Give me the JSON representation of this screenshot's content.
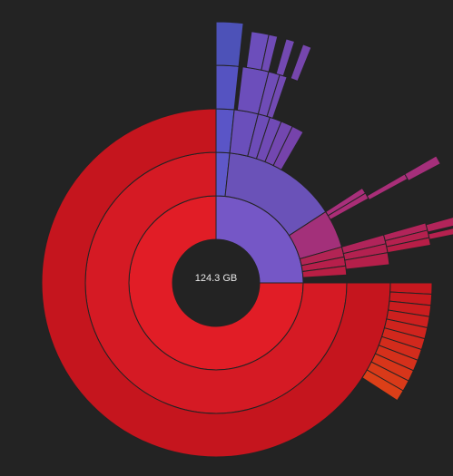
{
  "center": {
    "total_size": "124.3 GB"
  },
  "colors": {
    "background": "#232323",
    "center_hole": "#232323",
    "text": "#e8e8e8",
    "segment_border": "#232323"
  },
  "segments": [
    {
      "name": "ring1-red",
      "ring": 1,
      "start": 90,
      "end": 360,
      "color": "#e11d26"
    },
    {
      "name": "ring1-purple",
      "ring": 1,
      "start": 0,
      "end": 90,
      "color": "#7557c6"
    },
    {
      "name": "ring2-red",
      "ring": 2,
      "start": 90,
      "end": 360,
      "color": "#d51a24"
    },
    {
      "name": "ring2-purple-a",
      "ring": 2,
      "start": 0,
      "end": 6,
      "color": "#5f58c9"
    },
    {
      "name": "ring2-purple-b",
      "ring": 2,
      "start": 6,
      "end": 57,
      "color": "#6a52b8"
    },
    {
      "name": "ring2-magenta",
      "ring": 2,
      "start": 57,
      "end": 74,
      "color": "#a3307a"
    },
    {
      "name": "ring2-crimson-a",
      "ring": 2,
      "start": 74,
      "end": 78.5,
      "color": "#b22454"
    },
    {
      "name": "ring2-crimson-b",
      "ring": 2,
      "start": 78.5,
      "end": 82.5,
      "color": "#b71f4b"
    },
    {
      "name": "ring2-crimson-c",
      "ring": 2,
      "start": 82.5,
      "end": 86.5,
      "color": "#b81e44"
    },
    {
      "name": "ring3-red",
      "ring": 3,
      "start": 90,
      "end": 360,
      "color": "#c5151e"
    },
    {
      "name": "ring3-blue",
      "ring": 3,
      "start": 0,
      "end": 6,
      "color": "#5a55c7"
    },
    {
      "name": "ring3-purple-1",
      "ring": 3,
      "start": 6,
      "end": 14,
      "color": "#6a4fbb"
    },
    {
      "name": "ring3-purple-2",
      "ring": 3,
      "start": 14,
      "end": 18,
      "color": "#6d4cb8"
    },
    {
      "name": "ring3-purple-3",
      "ring": 3,
      "start": 18,
      "end": 22,
      "color": "#704ab5"
    },
    {
      "name": "ring3-purple-4",
      "ring": 3,
      "start": 22,
      "end": 26,
      "color": "#7347b0"
    },
    {
      "name": "ring3-purple-5",
      "ring": 3,
      "start": 26,
      "end": 30,
      "color": "#7643ab"
    },
    {
      "name": "ring3-magenta-1",
      "ring": 3,
      "start": 57,
      "end": 59,
      "color": "#a82f7b"
    },
    {
      "name": "ring3-magenta-2",
      "ring": 3,
      "start": 59,
      "end": 61,
      "color": "#aa2d76"
    },
    {
      "name": "ring3-crimson-1",
      "ring": 3,
      "start": 74,
      "end": 77,
      "color": "#b0245a"
    },
    {
      "name": "ring3-crimson-2",
      "ring": 3,
      "start": 77,
      "end": 80,
      "color": "#b32150"
    },
    {
      "name": "ring3-crimson-3",
      "ring": 3,
      "start": 80,
      "end": 84,
      "color": "#b51f4a"
    },
    {
      "name": "ring4-blue",
      "ring": 4,
      "start": 0,
      "end": 6,
      "color": "#5553c1"
    },
    {
      "name": "ring4-purple-1",
      "ring": 4,
      "start": 7,
      "end": 14,
      "color": "#6c4ebb"
    },
    {
      "name": "ring4-purple-2",
      "ring": 4,
      "start": 14,
      "end": 17,
      "color": "#6f4cb7"
    },
    {
      "name": "ring4-purple-3",
      "ring": 4,
      "start": 17,
      "end": 19,
      "color": "#724ab3"
    },
    {
      "name": "ring4-magenta",
      "ring": 4,
      "start": 60,
      "end": 61.5,
      "color": "#a92e78"
    },
    {
      "name": "ring4-crimson-1",
      "ring": 4,
      "start": 74,
      "end": 76,
      "color": "#b2245a"
    },
    {
      "name": "ring4-crimson-2",
      "ring": 4,
      "start": 76,
      "end": 78,
      "color": "#b5214f"
    },
    {
      "name": "ring4-crimson-3",
      "ring": 4,
      "start": 78,
      "end": 80,
      "color": "#b81e47"
    },
    {
      "name": "ring5-blue",
      "ring": 5,
      "start": 0,
      "end": 6,
      "color": "#4d52b8"
    },
    {
      "name": "ring5-purple-1",
      "ring": 5,
      "start": 8,
      "end": 12,
      "color": "#6c4ebb"
    },
    {
      "name": "ring5-purple-2",
      "ring": 5,
      "start": 12,
      "end": 14,
      "color": "#704bb6"
    },
    {
      "name": "ring5-purple-3",
      "ring": 5,
      "start": 16,
      "end": 18,
      "color": "#7349b2"
    },
    {
      "name": "ring5-purple-4",
      "ring": 5,
      "start": 20,
      "end": 22,
      "color": "#7646ad"
    },
    {
      "name": "ring5-magenta",
      "ring": 5,
      "start": 60,
      "end": 62,
      "color": "#a52f7b"
    },
    {
      "name": "ring5-crimson-1",
      "ring": 5,
      "start": 74.5,
      "end": 76.5,
      "color": "#b2245a"
    },
    {
      "name": "ring5-crimson-2",
      "ring": 5,
      "start": 77,
      "end": 78.5,
      "color": "#b6214f"
    },
    {
      "name": "ring4-orange-1",
      "ring": 4,
      "start": 90,
      "end": 93,
      "color": "#c7181f"
    },
    {
      "name": "ring4-orange-2",
      "ring": 4,
      "start": 93,
      "end": 96,
      "color": "#c91a1f"
    },
    {
      "name": "ring4-orange-3",
      "ring": 4,
      "start": 96,
      "end": 99,
      "color": "#cb1d1f"
    },
    {
      "name": "ring4-orange-4",
      "ring": 4,
      "start": 99,
      "end": 102,
      "color": "#cd201f"
    },
    {
      "name": "ring4-orange-5",
      "ring": 4,
      "start": 102,
      "end": 105,
      "color": "#cf241e"
    },
    {
      "name": "ring4-orange-6",
      "ring": 4,
      "start": 105,
      "end": 108,
      "color": "#d1281d"
    },
    {
      "name": "ring4-orange-7",
      "ring": 4,
      "start": 108,
      "end": 111,
      "color": "#d32c1c"
    },
    {
      "name": "ring4-orange-8",
      "ring": 4,
      "start": 111,
      "end": 114,
      "color": "#d5301b"
    },
    {
      "name": "ring4-orange-9",
      "ring": 4,
      "start": 114,
      "end": 117,
      "color": "#d7351a"
    },
    {
      "name": "ring4-orange-10",
      "ring": 4,
      "start": 117,
      "end": 120,
      "color": "#d93a19"
    },
    {
      "name": "ring4-orange-11",
      "ring": 4,
      "start": 120,
      "end": 123,
      "color": "#db3f18"
    }
  ]
}
